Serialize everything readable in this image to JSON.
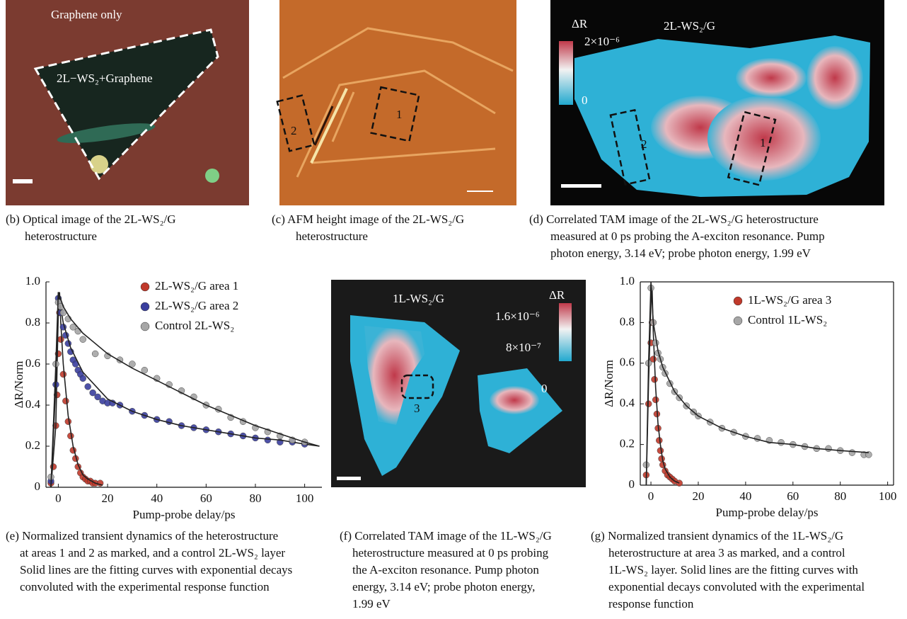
{
  "images": {
    "b": {
      "labels": [
        "Graphene only",
        "2L−WS₂+Graphene"
      ]
    },
    "c": {
      "labels": [
        "1",
        "2"
      ]
    },
    "d": {
      "labels": [
        "ΔR",
        "2×10⁻⁶",
        "0",
        "2L-WS₂/G",
        "1",
        "2"
      ]
    },
    "f": {
      "labels": [
        "1L-WS₂/G",
        "ΔR",
        "1.6×10⁻⁶",
        "8×10⁻⁷",
        "0",
        "3"
      ]
    }
  },
  "captions": {
    "b": [
      "(b) Optical image of the 2L-WS₂/G",
      "heterostructure"
    ],
    "c": [
      "(c) AFM height image of the 2L-WS₂/G",
      "heterostructure"
    ],
    "d": [
      "(d) Correlated TAM image of the 2L-WS₂/G  heterostructure",
      "measured at 0 ps probing the A-exciton resonance. Pump",
      "photon energy, 3.14 eV; probe photon energy, 1.99 eV"
    ],
    "e": [
      "(e) Normalized transient dynamics of the heterostructure",
      "at areas 1 and 2 as marked, and a control 2L-WS₂ layer",
      "Solid lines are the fitting curves with exponential decays",
      "convoluted with the experimental response  function"
    ],
    "f": [
      "(f) Correlated TAM image of the 1L-WS₂/G",
      "heterostructure measured at 0 ps probing",
      "the A-exciton resonance. Pump photon",
      "energy, 3.14 eV; probe photon energy,",
      "1.99 eV"
    ],
    "g": [
      "(g) Normalized transient dynamics of the 1L-WS₂/G",
      "heterostructure at area 3 as marked, and a control",
      "1L-WS₂ layer. Solid lines are the fitting curves with",
      "exponential decays convoluted with the experimental",
      "response function"
    ]
  },
  "chart_data": [
    {
      "type": "scatter",
      "x_label": "Pump-probe delay/ps",
      "y_label": "ΔR/Norm",
      "legend": "upper right",
      "xlim": [
        -5,
        107
      ],
      "xticks": [
        0,
        20,
        40,
        60,
        80,
        100
      ],
      "ylim": [
        0,
        1
      ],
      "yticks": [
        0,
        0.2,
        0.4,
        0.6,
        0.8,
        {
          "value": 1,
          "label": "1.0"
        }
      ],
      "series": [
        {
          "name": "2L-WS₂/G area 1",
          "color": "#c0392b",
          "x": [
            -3,
            -2,
            -1,
            -0.5,
            0,
            0.5,
            1,
            2,
            3,
            4,
            5,
            6,
            7,
            8,
            9,
            10,
            11,
            12,
            13,
            14,
            15,
            17
          ],
          "values": [
            0.02,
            0.1,
            0.3,
            0.45,
            0.65,
            0.85,
            0.72,
            0.55,
            0.42,
            0.32,
            0.25,
            0.18,
            0.14,
            0.1,
            0.07,
            0.05,
            0.04,
            0.03,
            0.03,
            0.02,
            0.02,
            0.02
          ],
          "fit": {
            "x": [
              -3,
              -1,
              0,
              0.5,
              1,
              2,
              4,
              6,
              8,
              10,
              12,
              15,
              18
            ],
            "values": [
              0,
              0.3,
              0.85,
              0.95,
              0.8,
              0.6,
              0.35,
              0.2,
              0.11,
              0.06,
              0.04,
              0.02,
              0.01
            ]
          }
        },
        {
          "name": "2L-WS₂/G area 2",
          "color": "#3a3f9e",
          "x": [
            -3,
            -1,
            0,
            1,
            2,
            3,
            4,
            5,
            6,
            7,
            8,
            9,
            10,
            12,
            14,
            16,
            18,
            20,
            22,
            25,
            30,
            35,
            40,
            45,
            50,
            55,
            60,
            65,
            70,
            75,
            80,
            85,
            90,
            95,
            100
          ],
          "values": [
            0.03,
            0.5,
            0.92,
            0.85,
            0.78,
            0.74,
            0.7,
            0.66,
            0.62,
            0.6,
            0.57,
            0.55,
            0.53,
            0.49,
            0.46,
            0.44,
            0.42,
            0.41,
            0.41,
            0.4,
            0.37,
            0.35,
            0.33,
            0.32,
            0.3,
            0.29,
            0.28,
            0.27,
            0.26,
            0.25,
            0.24,
            0.23,
            0.22,
            0.22,
            0.21
          ],
          "fit": {
            "x": [
              -3,
              -1,
              0,
              2,
              5,
              10,
              20,
              30,
              40,
              50,
              60,
              70,
              80,
              90,
              100,
              106
            ],
            "values": [
              0,
              0.5,
              0.95,
              0.8,
              0.68,
              0.56,
              0.43,
              0.37,
              0.33,
              0.3,
              0.28,
              0.26,
              0.24,
              0.23,
              0.21,
              0.2
            ]
          }
        },
        {
          "name": "Control 2L-WS₂",
          "color": "#a6a6a6",
          "x": [
            -3,
            -1,
            0,
            1,
            2,
            4,
            6,
            8,
            10,
            15,
            20,
            25,
            30,
            35,
            40,
            45,
            50,
            55,
            60,
            65,
            70,
            75,
            80,
            85,
            90,
            95,
            100
          ],
          "values": [
            0.05,
            0.6,
            0.9,
            0.88,
            0.85,
            0.82,
            0.78,
            0.76,
            0.72,
            0.65,
            0.64,
            0.62,
            0.6,
            0.57,
            0.53,
            0.5,
            0.47,
            0.44,
            0.4,
            0.38,
            0.34,
            0.32,
            0.29,
            0.27,
            0.25,
            0.23,
            0.22
          ],
          "fit": {
            "x": [
              -3,
              -1,
              0,
              2,
              5,
              10,
              20,
              30,
              40,
              50,
              60,
              70,
              80,
              90,
              100,
              106
            ],
            "values": [
              0,
              0.6,
              0.95,
              0.88,
              0.82,
              0.75,
              0.65,
              0.58,
              0.52,
              0.46,
              0.4,
              0.35,
              0.3,
              0.26,
              0.22,
              0.2
            ]
          }
        }
      ]
    },
    {
      "type": "scatter",
      "x_label": "Pump-probe delay/ps",
      "y_label": "ΔR/Norm",
      "legend": "upper right",
      "xlim": [
        -4.5,
        102.5
      ],
      "xticks": [
        0,
        20,
        40,
        60,
        80,
        100
      ],
      "ylim": [
        0,
        1
      ],
      "yticks": [
        0,
        0.2,
        0.4,
        0.6,
        0.8,
        {
          "value": 1,
          "label": "1.0"
        }
      ],
      "series": [
        {
          "name": "1L-WS₂/G area 3",
          "color": "#c0392b",
          "x": [
            -2,
            -1,
            0,
            0.5,
            1,
            1.5,
            2,
            2.5,
            3,
            3.5,
            4,
            4.5,
            5,
            6,
            7,
            8,
            9,
            10,
            12
          ],
          "values": [
            0.05,
            0.4,
            0.7,
            0.8,
            0.62,
            0.52,
            0.42,
            0.35,
            0.28,
            0.22,
            0.17,
            0.13,
            0.1,
            0.07,
            0.05,
            0.04,
            0.03,
            0.02,
            0.01
          ],
          "fit": {
            "x": [
              -2,
              -1,
              0,
              0.5,
              1,
              2,
              3,
              4,
              5,
              6,
              8,
              10,
              12
            ],
            "values": [
              0,
              0.5,
              0.9,
              0.97,
              0.75,
              0.48,
              0.3,
              0.2,
              0.12,
              0.08,
              0.04,
              0.02,
              0.01
            ]
          }
        },
        {
          "name": "Control 1L-WS₂",
          "color": "#a6a6a6",
          "x": [
            -2,
            -1,
            0,
            1,
            2,
            3,
            4,
            5,
            6,
            8,
            10,
            12,
            15,
            18,
            20,
            25,
            30,
            35,
            40,
            45,
            50,
            55,
            60,
            65,
            70,
            75,
            80,
            85,
            90,
            92
          ],
          "values": [
            0.1,
            0.6,
            0.97,
            0.8,
            0.7,
            0.65,
            0.62,
            0.58,
            0.55,
            0.5,
            0.46,
            0.43,
            0.39,
            0.36,
            0.34,
            0.31,
            0.28,
            0.26,
            0.24,
            0.23,
            0.22,
            0.21,
            0.2,
            0.19,
            0.18,
            0.18,
            0.17,
            0.16,
            0.15,
            0.15
          ],
          "fit": {
            "x": [
              -2,
              -1,
              0,
              1,
              3,
              5,
              10,
              15,
              20,
              30,
              40,
              50,
              60,
              70,
              80,
              92
            ],
            "values": [
              0,
              0.6,
              1,
              0.8,
              0.66,
              0.58,
              0.46,
              0.39,
              0.34,
              0.28,
              0.24,
              0.21,
              0.2,
              0.18,
              0.17,
              0.16
            ]
          }
        }
      ]
    }
  ]
}
